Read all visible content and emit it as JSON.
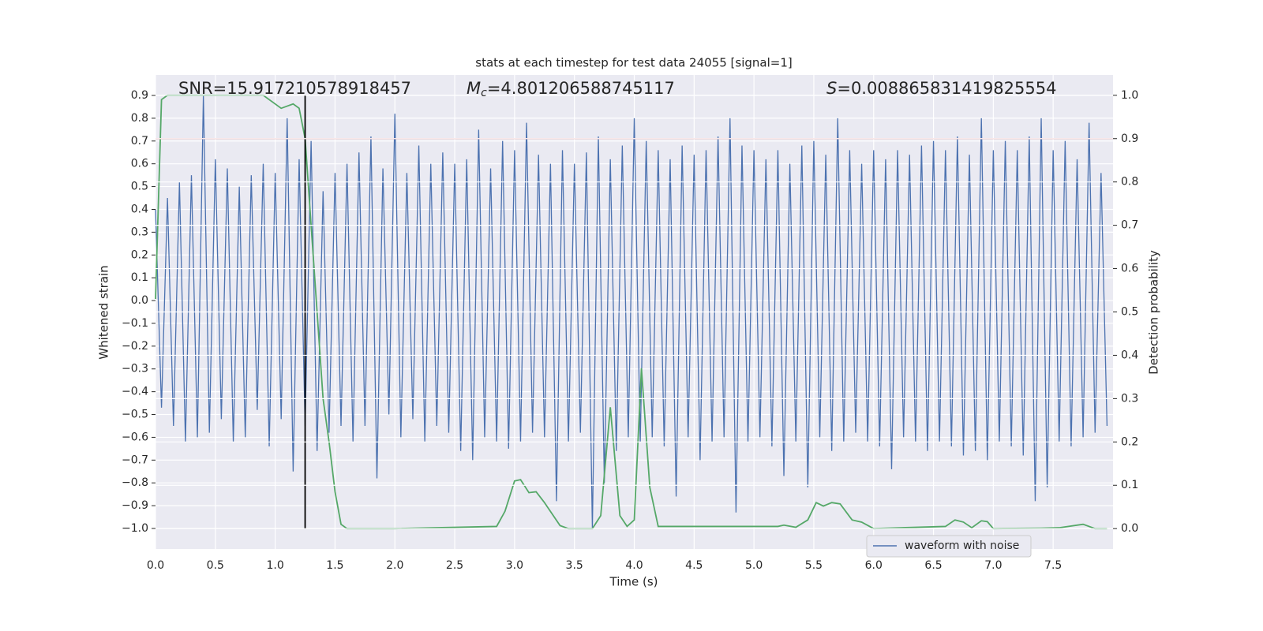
{
  "chart_data": {
    "type": "line",
    "title": "stats at each timestep for test data 24055 [signal=1]",
    "xlabel": "Time (s)",
    "ylabel": "Whitened strain",
    "y2label": "Detection probability",
    "annotations": [
      {
        "text": "SNR=15.917210578918457"
      },
      {
        "symbol": "M",
        "subscript": "c",
        "text": "=4.801206588745117"
      },
      {
        "symbol": "S",
        "text": "=0.008865831419825554"
      }
    ],
    "xlim": [
      0,
      8.0
    ],
    "ylim": [
      -1.09,
      0.99
    ],
    "y2lim": [
      -0.047,
      1.047
    ],
    "xticks": [
      {
        "value": 0,
        "label": "0.0"
      },
      0.5,
      {
        "value": 1,
        "label": "1.0"
      },
      1.5,
      {
        "value": 2,
        "label": "2.0"
      },
      2.5,
      {
        "value": 3,
        "label": "3.0"
      },
      3.5,
      {
        "value": 4,
        "label": "4.0"
      },
      4.5,
      {
        "value": 5,
        "label": "5.0"
      },
      5.5,
      {
        "value": 6,
        "label": "6.0"
      },
      6.5,
      {
        "value": 7,
        "label": "7.0"
      },
      7.5
    ],
    "yticks": [
      {
        "value": -1.0,
        "label": "−1.0"
      },
      {
        "value": -0.9,
        "label": "−0.9"
      },
      {
        "value": -0.8,
        "label": "−0.8"
      },
      {
        "value": -0.7,
        "label": "−0.7"
      },
      {
        "value": -0.6,
        "label": "−0.6"
      },
      {
        "value": -0.5,
        "label": "−0.5"
      },
      {
        "value": -0.4,
        "label": "−0.4"
      },
      {
        "value": -0.3,
        "label": "−0.3"
      },
      {
        "value": -0.2,
        "label": "−0.2"
      },
      {
        "value": -0.1,
        "label": "−0.1"
      },
      {
        "value": 0,
        "label": "0.0"
      },
      0.1,
      0.2,
      0.3,
      0.4,
      0.5,
      0.6,
      0.7,
      0.8,
      0.9
    ],
    "y2ticks": [
      {
        "value": 0,
        "label": "0.0"
      },
      0.1,
      0.2,
      0.3,
      0.4,
      0.5,
      0.6,
      0.7,
      0.8,
      0.9,
      {
        "value": 1,
        "label": "1.0"
      }
    ],
    "grid": true,
    "legend": "lower center right",
    "series": [
      {
        "name": "waveform with noise",
        "color": "#4c72b0",
        "x": [
          0,
          0.05,
          0.1,
          0.15,
          0.2,
          0.25,
          0.3,
          0.35,
          0.4,
          0.45,
          0.5,
          0.55,
          0.6,
          0.65,
          0.7,
          0.75,
          0.8,
          0.85,
          0.9,
          0.95,
          1,
          1.05,
          1.1,
          1.15,
          1.2,
          1.25,
          1.3,
          1.35,
          1.4,
          1.45,
          1.5,
          1.55,
          1.6,
          1.65,
          1.7,
          1.75,
          1.8,
          1.85,
          1.9,
          1.95,
          2,
          2.05,
          2.1,
          2.15,
          2.2,
          2.25,
          2.3,
          2.35,
          2.4,
          2.45,
          2.5,
          2.55,
          2.6,
          2.65,
          2.7,
          2.75,
          2.8,
          2.85,
          2.9,
          2.95,
          3,
          3.05,
          3.1,
          3.15,
          3.2,
          3.25,
          3.3,
          3.35,
          3.4,
          3.45,
          3.5,
          3.55,
          3.6,
          3.65,
          3.7,
          3.75,
          3.8,
          3.85,
          3.9,
          3.95,
          4,
          4.05,
          4.1,
          4.15,
          4.2,
          4.25,
          4.3,
          4.35,
          4.4,
          4.45,
          4.5,
          4.55,
          4.6,
          4.65,
          4.7,
          4.75,
          4.8,
          4.85,
          4.9,
          4.95,
          5,
          5.05,
          5.1,
          5.15,
          5.2,
          5.25,
          5.3,
          5.35,
          5.4,
          5.45,
          5.5,
          5.55,
          5.6,
          5.65,
          5.7,
          5.75,
          5.8,
          5.85,
          5.9,
          5.95,
          6,
          6.05,
          6.1,
          6.15,
          6.2,
          6.25,
          6.3,
          6.35,
          6.4,
          6.45,
          6.5,
          6.55,
          6.6,
          6.65,
          6.7,
          6.75,
          6.8,
          6.85,
          6.9,
          6.95,
          7,
          7.05,
          7.1,
          7.15,
          7.2,
          7.25,
          7.3,
          7.35,
          7.4,
          7.45,
          7.5,
          7.55,
          7.6,
          7.65,
          7.7,
          7.75,
          7.8,
          7.85,
          7.9,
          7.95
        ],
        "values": [
          0.4,
          -0.47,
          0.45,
          -0.55,
          0.52,
          -0.62,
          0.55,
          -0.6,
          0.9,
          -0.58,
          0.62,
          -0.52,
          0.58,
          -0.62,
          0.5,
          -0.6,
          0.55,
          -0.48,
          0.6,
          -0.64,
          0.56,
          -0.52,
          0.8,
          -0.75,
          0.62,
          -0.55,
          0.7,
          -0.66,
          0.48,
          -0.58,
          0.56,
          -0.55,
          0.6,
          -0.62,
          0.65,
          -0.55,
          0.72,
          -0.78,
          0.58,
          -0.5,
          0.82,
          -0.6,
          0.56,
          -0.52,
          0.68,
          -0.62,
          0.6,
          -0.55,
          0.65,
          -0.58,
          0.6,
          -0.66,
          0.62,
          -0.7,
          0.75,
          -0.6,
          0.58,
          -0.62,
          0.7,
          -0.65,
          0.66,
          -0.62,
          0.78,
          -0.58,
          0.64,
          -0.6,
          0.6,
          -0.88,
          0.66,
          -0.62,
          0.6,
          -0.58,
          0.65,
          -1.0,
          0.72,
          -0.8,
          0.62,
          -0.66,
          0.68,
          -0.6,
          0.8,
          -0.62,
          0.7,
          -0.6,
          0.66,
          -0.64,
          0.62,
          -0.86,
          0.68,
          -0.6,
          0.64,
          -0.7,
          0.66,
          -0.62,
          0.72,
          -0.6,
          0.8,
          -0.93,
          0.68,
          -0.62,
          0.66,
          -0.6,
          0.62,
          -0.64,
          0.66,
          -0.77,
          0.6,
          -0.62,
          0.68,
          -0.82,
          0.7,
          -0.6,
          0.64,
          -0.66,
          0.8,
          -0.62,
          0.66,
          -0.58,
          0.6,
          -0.62,
          0.66,
          -0.64,
          0.62,
          -0.74,
          0.66,
          -0.6,
          0.64,
          -0.62,
          0.68,
          -0.66,
          0.7,
          -0.62,
          0.66,
          -0.64,
          0.72,
          -0.68,
          0.64,
          -0.66,
          0.8,
          -0.7,
          0.66,
          -0.62,
          0.7,
          -0.64,
          0.66,
          -0.68,
          0.72,
          -0.88,
          0.8,
          -0.82,
          0.66,
          -0.62,
          0.7,
          -0.64,
          0.62,
          -0.6,
          0.78,
          -0.58,
          0.56,
          -0.55
        ]
      },
      {
        "color": "#55a868",
        "axis": "y2",
        "x": [
          0,
          0.05,
          0.1,
          0.2,
          0.5,
          0.9,
          0.95,
          1.05,
          1.15,
          1.2,
          1.25,
          1.3,
          1.35,
          1.4,
          1.45,
          1.5,
          1.55,
          1.6,
          2.0,
          2.85,
          2.92,
          3.0,
          3.05,
          3.12,
          3.18,
          3.25,
          3.38,
          3.45,
          3.65,
          3.72,
          3.8,
          3.88,
          3.94,
          4.0,
          4.06,
          4.13,
          4.2,
          5.2,
          5.25,
          5.35,
          5.45,
          5.52,
          5.58,
          5.65,
          5.72,
          5.82,
          5.9,
          6.0,
          6.6,
          6.68,
          6.75,
          6.82,
          6.9,
          6.95,
          7.0,
          7.4,
          7.55,
          7.75,
          7.85,
          7.95
        ],
        "values": [
          0.53,
          0.99,
          1.0,
          1.0,
          1.0,
          1.0,
          0.99,
          0.97,
          0.98,
          0.97,
          0.9,
          0.7,
          0.5,
          0.3,
          0.2,
          0.085,
          0.01,
          0.0,
          0.0,
          0.005,
          0.04,
          0.11,
          0.113,
          0.083,
          0.085,
          0.06,
          0.007,
          0.0,
          0.0,
          0.03,
          0.28,
          0.03,
          0.005,
          0.02,
          0.37,
          0.095,
          0.005,
          0.005,
          0.008,
          0.003,
          0.02,
          0.06,
          0.052,
          0.06,
          0.057,
          0.02,
          0.015,
          0.0,
          0.005,
          0.02,
          0.015,
          0.002,
          0.018,
          0.016,
          0.0,
          0.001,
          0.002,
          0.01,
          0.0,
          0.0
        ]
      }
    ],
    "hline": {
      "y": 0.9,
      "axis": "y2",
      "color": "#c44e52"
    },
    "vline": {
      "x": 1.25,
      "ymin": -1.0,
      "ymax": 0.9,
      "color": "#000000"
    }
  }
}
